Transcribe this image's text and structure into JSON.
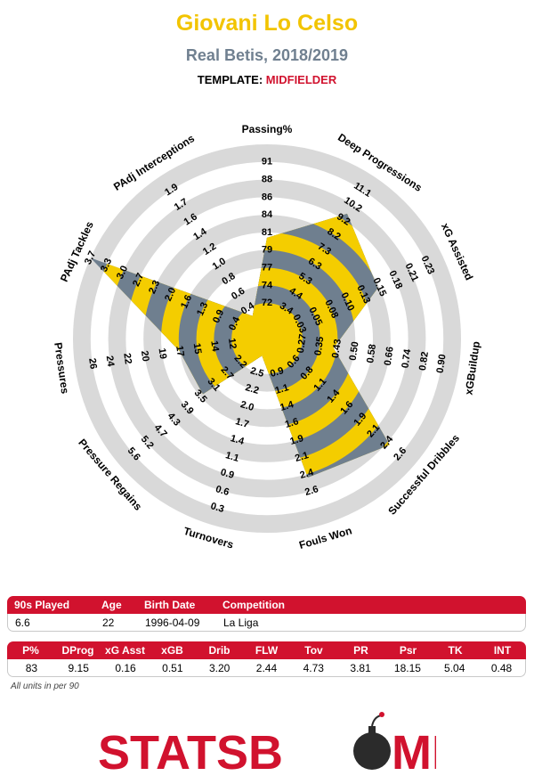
{
  "header": {
    "player": "Giovani Lo Celso",
    "season": "Real Betis, 2018/2019",
    "template_label": "TEMPLATE:",
    "template_value": "MIDFIELDER"
  },
  "colors": {
    "player": "#f2c400",
    "season": "#708090",
    "accent": "#d1122e",
    "fill_yellow": "#f4cd00",
    "fill_gray": "#6f7f8f",
    "ring": "#d9d9d9"
  },
  "chart_data": {
    "type": "radar",
    "axes": [
      {
        "label": "Passing%",
        "ticks": [
          "72",
          "74",
          "77",
          "79",
          "81",
          "84",
          "86",
          "88",
          "91"
        ],
        "value": 83,
        "fill": 0.47
      },
      {
        "label": "Deep Progressions",
        "ticks": [
          "3.4",
          "4.4",
          "5.3",
          "6.3",
          "7.3",
          "8.2",
          "9.2",
          "10.2",
          "11.1"
        ],
        "value": 9.15,
        "fill": 0.74
      },
      {
        "label": "xG Assisted",
        "ticks": [
          "0.03",
          "0.05",
          "0.08",
          "0.10",
          "0.13",
          "0.15",
          "0.18",
          "0.21",
          "0.23"
        ],
        "value": 0.16,
        "fill": 0.59
      },
      {
        "label": "xGBuildup",
        "ticks": [
          "0.27",
          "0.35",
          "0.43",
          "0.50",
          "0.58",
          "0.66",
          "0.74",
          "0.82",
          "0.90"
        ],
        "value": 0.51,
        "fill": 0.28
      },
      {
        "label": "Successful Dribbles",
        "ticks": [
          "0.6",
          "0.8",
          "1.1",
          "1.4",
          "1.6",
          "1.9",
          "2.1",
          "2.4",
          "2.6"
        ],
        "value": 3.2,
        "fill": 0.82
      },
      {
        "label": "Fouls Won",
        "ticks": [
          "0.9",
          "1.1",
          "1.4",
          "1.6",
          "1.9",
          "2.1",
          "2.4",
          "2.6"
        ],
        "value": 2.44,
        "fill": 0.72
      },
      {
        "label": "Turnovers",
        "ticks": [
          "2.5",
          "2.2",
          "2.0",
          "1.7",
          "1.4",
          "1.1",
          "0.9",
          "0.6",
          "0.3"
        ],
        "value": 4.73,
        "fill": 0.0
      },
      {
        "label": "Pressure Regains",
        "ticks": [
          "2.2",
          "2.7",
          "3.1",
          "3.5",
          "3.9",
          "4.3",
          "4.7",
          "5.2",
          "5.6"
        ],
        "value": 3.81,
        "fill": 0.38
      },
      {
        "label": "Pressures",
        "ticks": [
          "12",
          "14",
          "15",
          "17",
          "19",
          "20",
          "22",
          "24",
          "26"
        ],
        "value": 18.15,
        "fill": 0.4
      },
      {
        "label": "PAdj Tackles",
        "ticks": [
          "0.4",
          "0.9",
          "1.3",
          "1.6",
          "2.0",
          "2.3",
          "2.7",
          "3.0",
          "3.3",
          "3.7"
        ],
        "value": 5.04,
        "fill": 1.0
      },
      {
        "label": "PAdj Interceptions",
        "ticks": [
          "0.4",
          "0.6",
          "0.8",
          "1.0",
          "1.2",
          "1.4",
          "1.6",
          "1.7",
          "1.9"
        ],
        "value": 0.48,
        "fill": 0.05
      }
    ]
  },
  "bio_table": {
    "headers": [
      "90s Played",
      "Age",
      "Birth Date",
      "Competition"
    ],
    "values": [
      "6.6",
      "22",
      "1996-04-09",
      "La Liga"
    ]
  },
  "stats_table": {
    "headers": [
      "P%",
      "DProg",
      "xG Asst",
      "xGB",
      "Drib",
      "FLW",
      "Tov",
      "PR",
      "Psr",
      "TK",
      "INT"
    ],
    "values": [
      "83",
      "9.15",
      "0.16",
      "0.51",
      "3.20",
      "2.44",
      "4.73",
      "3.81",
      "18.15",
      "5.04",
      "0.48"
    ]
  },
  "footnote": "All units in per 90",
  "logo": {
    "left": "STATSB",
    "right": "MB"
  }
}
